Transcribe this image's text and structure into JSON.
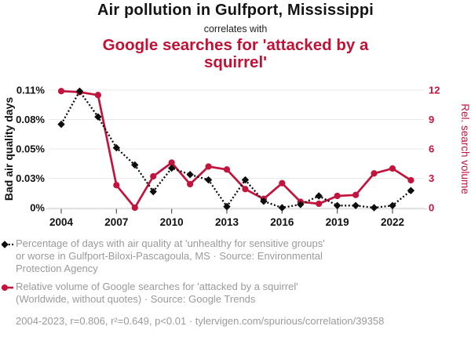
{
  "header": {
    "title": "Air pollution in Gulfport, Mississippi",
    "connector": "correlates with",
    "subtitle": "Google searches for 'attacked by a squirrel'"
  },
  "colors": {
    "accent_red": "#c11236",
    "series_black": "#0d0d0d",
    "legend_gray": "#9a9a9a"
  },
  "chart_data": {
    "type": "line",
    "title": "Air pollution in Gulfport, Mississippi correlates with Google searches for 'attacked by a squirrel'",
    "x": [
      2004,
      2005,
      2006,
      2007,
      2008,
      2009,
      2010,
      2011,
      2012,
      2013,
      2014,
      2015,
      2016,
      2017,
      2018,
      2019,
      2020,
      2021,
      2022,
      2023
    ],
    "series": [
      {
        "name": "Bad air quality days",
        "axis": "left",
        "color": "#0d0d0d",
        "style": "dotted",
        "marker": "diamond",
        "values": [
          0.078,
          0.109,
          0.085,
          0.056,
          0.04,
          0.015,
          0.037,
          0.031,
          0.026,
          0.001,
          0.026,
          0.006,
          0.0,
          0.003,
          0.011,
          0.002,
          0.002,
          0.0,
          0.002,
          0.016
        ]
      },
      {
        "name": "Rel. search volume",
        "axis": "right",
        "color": "#c2143c",
        "style": "solid",
        "marker": "circle",
        "values": [
          11.9,
          11.8,
          11.5,
          2.3,
          0.0,
          3.2,
          4.6,
          2.4,
          4.2,
          3.9,
          1.9,
          0.9,
          2.5,
          0.6,
          0.4,
          1.2,
          1.3,
          3.5,
          4.0,
          2.8
        ]
      }
    ],
    "left_axis": {
      "label": "Bad air quality days",
      "range": [
        0,
        0.11
      ],
      "ticks": [
        0,
        0.0275,
        0.055,
        0.0825,
        0.11
      ],
      "tick_labels": [
        "0%",
        "0.03%",
        "0.05%",
        "0.08%",
        "0.11%"
      ]
    },
    "right_axis": {
      "label": "Rel. search volume",
      "range": [
        0,
        12
      ],
      "ticks": [
        0,
        3,
        6,
        9,
        12
      ],
      "tick_labels": [
        "0",
        "3",
        "6",
        "9",
        "12"
      ]
    },
    "x_axis": {
      "range": [
        2004,
        2023
      ],
      "tick_years": [
        2004,
        2007,
        2010,
        2013,
        2016,
        2019,
        2022
      ]
    },
    "grid": true,
    "legend_position": "bottom"
  },
  "legend": {
    "series1": {
      "lines": [
        "Percentage of days with air quality at 'unhealthy for sensitive groups'",
        "or worse in Gulfport-Biloxi-Pascagoula, MS · Source: Environmental",
        "Protection Agency"
      ]
    },
    "series2": {
      "lines": [
        "Relative volume of Google searches for 'attacked by a squirrel'",
        "(Worldwide, without quotes) · Source: Google Trends"
      ]
    },
    "footer": "2004-2023, r=0.806, r²=0.649, p<0.01 · tylervigen.com/spurious/correlation/39358"
  }
}
